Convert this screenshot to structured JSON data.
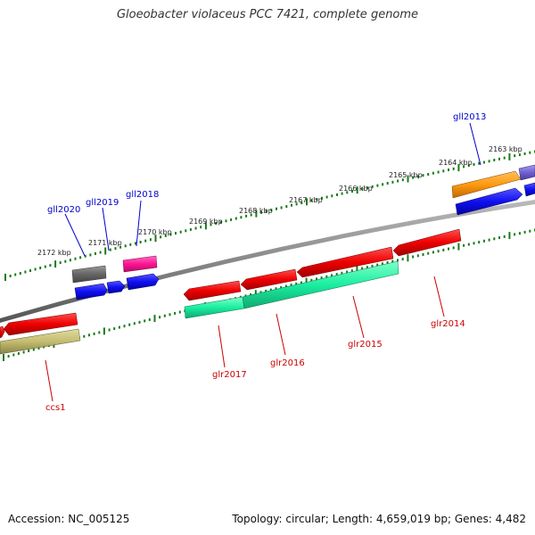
{
  "title": "Gloeobacter violaceus PCC 7421, complete genome",
  "footer": {
    "accession": "Accession: NC_005125",
    "summary": "Topology: circular; Length: 4,659,019 bp; Genes: 4,482"
  },
  "colors": {
    "backbone": "#888888",
    "tick": "#1a7a1a",
    "plus_label": "#0000cc",
    "minus_label": "#cc0000"
  },
  "ticks": [
    {
      "label": "2172 kbp"
    },
    {
      "label": "2171 kbp"
    },
    {
      "label": "2170 kbp"
    },
    {
      "label": "2169 kbp"
    },
    {
      "label": "2168 kbp"
    },
    {
      "label": "2167 kbp"
    },
    {
      "label": "2166 kbp"
    },
    {
      "label": "2165 kbp"
    },
    {
      "label": "2164 kbp"
    },
    {
      "label": "2163 kbp"
    }
  ],
  "labels": [
    {
      "name": "gll2020",
      "strand": "plus"
    },
    {
      "name": "gll2019",
      "strand": "plus"
    },
    {
      "name": "gll2018",
      "strand": "plus"
    },
    {
      "name": "gll2013",
      "strand": "plus"
    },
    {
      "name": "ccs1",
      "strand": "minus"
    },
    {
      "name": "glr2017",
      "strand": "minus"
    },
    {
      "name": "glr2016",
      "strand": "minus"
    },
    {
      "name": "glr2015",
      "strand": "minus"
    },
    {
      "name": "glr2014",
      "strand": "minus"
    }
  ]
}
